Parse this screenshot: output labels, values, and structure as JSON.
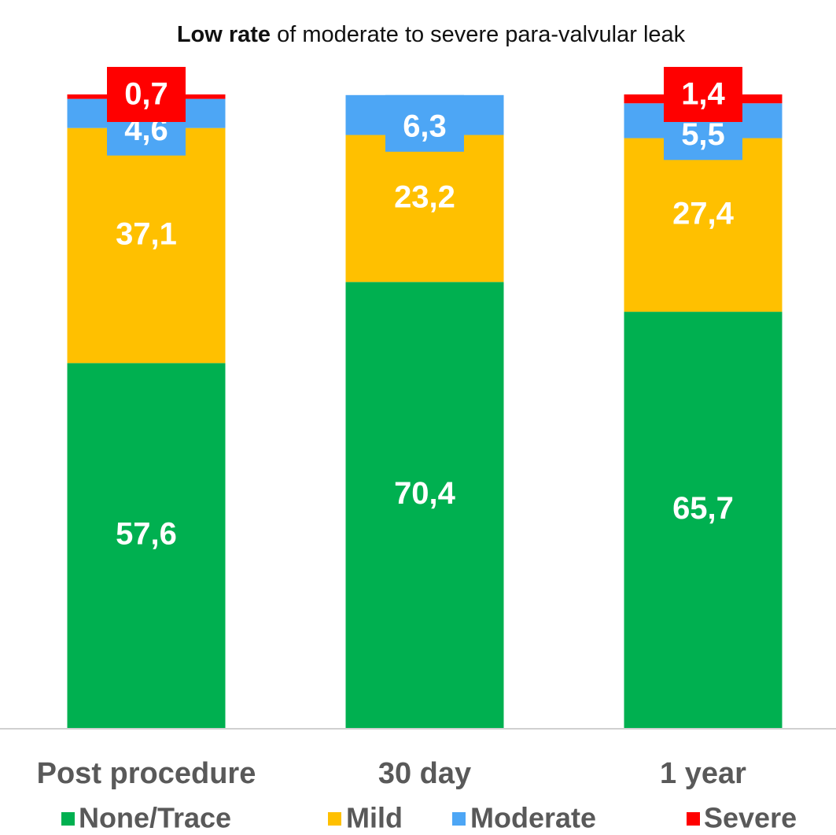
{
  "chart_data": {
    "type": "stacked_bar",
    "title_emphasis": "Low rate",
    "title": "of moderate to severe para-valvular leak",
    "categories": [
      "Post procedure",
      "30 day",
      "1 year"
    ],
    "series": [
      {
        "name": "None/Trace",
        "color": "#00b050",
        "values": [
          57.6,
          70.4,
          65.7
        ],
        "value_labels": [
          "57,6",
          "70,4",
          "65,7"
        ]
      },
      {
        "name": "Mild",
        "color": "#ffc000",
        "values": [
          37.1,
          23.2,
          27.4
        ],
        "value_labels": [
          "37,1",
          "23,2",
          "27,4"
        ]
      },
      {
        "name": "Moderate",
        "color": "#4da6f5",
        "values": [
          4.6,
          6.3,
          5.5
        ],
        "value_labels": [
          "4,6",
          "6,3",
          "5,5"
        ]
      },
      {
        "name": "Severe",
        "color": "#ff0000",
        "values": [
          0.7,
          null,
          1.4
        ],
        "value_labels": [
          "0,7",
          null,
          "1,4"
        ]
      }
    ],
    "ylim": [
      0,
      100
    ],
    "legend": "bottom"
  }
}
